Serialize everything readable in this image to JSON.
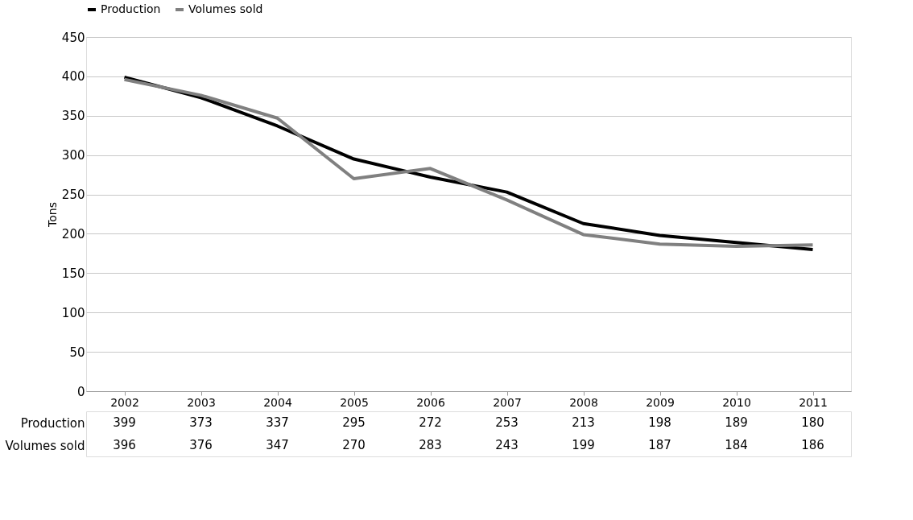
{
  "chart_data": {
    "type": "line",
    "ylabel": "Tons",
    "categories": [
      "2002",
      "2003",
      "2004",
      "2005",
      "2006",
      "2007",
      "2008",
      "2009",
      "2010",
      "2011"
    ],
    "series": [
      {
        "name": "Production",
        "color": "#000000",
        "values": [
          399,
          373,
          337,
          295,
          272,
          253,
          213,
          198,
          189,
          180
        ]
      },
      {
        "name": "Volumes sold",
        "color": "#808080",
        "values": [
          396,
          376,
          347,
          270,
          283,
          243,
          199,
          187,
          184,
          186
        ]
      }
    ],
    "ylim": [
      0,
      450
    ],
    "yticks": [
      0,
      50,
      100,
      150,
      200,
      250,
      300,
      350,
      400,
      450
    ],
    "grid": "y",
    "legend": "top",
    "data_labels": true,
    "marker": "none",
    "line_style": "solid"
  }
}
